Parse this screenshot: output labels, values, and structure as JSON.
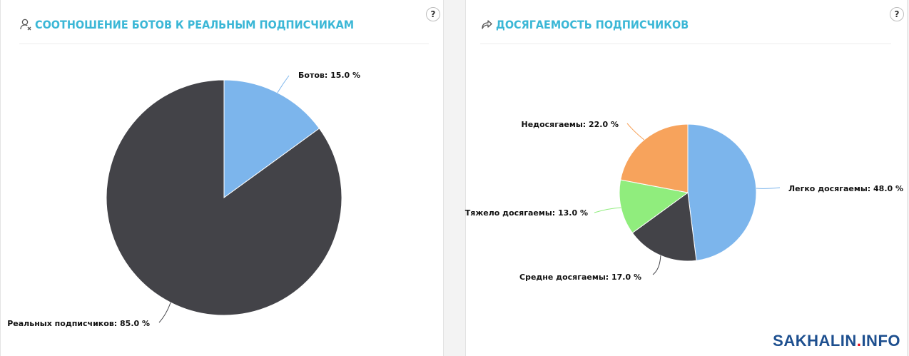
{
  "panels": [
    {
      "title": "СООТНОШЕНИЕ БОТОВ К РЕАЛЬНЫМ ПОДПИСЧИКАМ",
      "icon": "user-remove-icon",
      "help": "?"
    },
    {
      "title": "ДОСЯГАЕМОСТЬ ПОДПИСЧИКОВ",
      "icon": "share-arrow-icon",
      "help": "?"
    }
  ],
  "chart_data": [
    {
      "type": "pie",
      "title": "СООТНОШЕНИЕ БОТОВ К РЕАЛЬНЫМ ПОДПИСЧИКАМ",
      "categories": [
        "Ботов",
        "Реальных подписчиков"
      ],
      "values": [
        15.0,
        85.0
      ],
      "labels": [
        "Ботов: 15.0 %",
        "Реальных подписчиков: 85.0 %"
      ],
      "colors": [
        "#7cb5ec",
        "#434348"
      ]
    },
    {
      "type": "pie",
      "title": "ДОСЯГАЕМОСТЬ ПОДПИСЧИКОВ",
      "categories": [
        "Легко досягаемы",
        "Средне досягаемы",
        "Тяжело досягаемы",
        "Недосягаемы"
      ],
      "values": [
        48.0,
        17.0,
        13.0,
        22.0
      ],
      "labels": [
        "Легко досягаемы: 48.0 %",
        "Средне досягаемы: 17.0 %",
        "Тяжело досягаемы: 13.0 %",
        "Недосягаемы: 22.0 %"
      ],
      "colors": [
        "#7cb5ec",
        "#434348",
        "#90ed7d",
        "#f7a35c"
      ]
    }
  ],
  "watermark": {
    "part1": "SAKHALIN",
    "part2": ".",
    "part3": "INFO"
  }
}
